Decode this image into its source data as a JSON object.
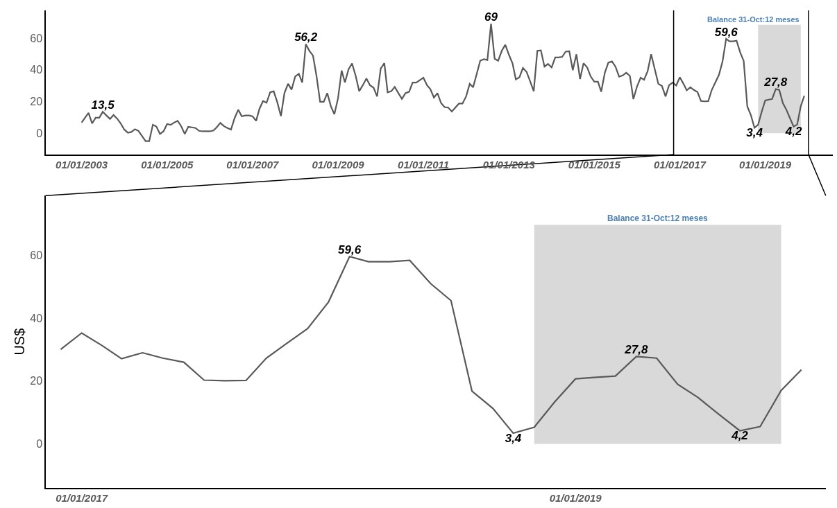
{
  "chart_data": [
    {
      "type": "line",
      "x": [
        "2003-01",
        "2003-03",
        "2003-04",
        "2003-05",
        "2003-06",
        "2003-07",
        "2003-08",
        "2003-09",
        "2003-10",
        "2003-11",
        "2003-12",
        "2004-01",
        "2004-02",
        "2004-03",
        "2004-04",
        "2004-05",
        "2004-06",
        "2004-07",
        "2004-08",
        "2004-09",
        "2004-10",
        "2004-11",
        "2004-12",
        "2005-01",
        "2005-02",
        "2005-03",
        "2005-04",
        "2005-05",
        "2005-06",
        "2005-07",
        "2005-08",
        "2005-09",
        "2005-10",
        "2005-11",
        "2005-12",
        "2006-01",
        "2006-02",
        "2006-03",
        "2006-04",
        "2006-05",
        "2006-06",
        "2006-07",
        "2006-08",
        "2006-09",
        "2006-10",
        "2006-11",
        "2006-12",
        "2007-01",
        "2007-02",
        "2007-03",
        "2007-04",
        "2007-05",
        "2007-06",
        "2007-07",
        "2007-08",
        "2007-09",
        "2007-10",
        "2007-11",
        "2007-12",
        "2008-01",
        "2008-02",
        "2008-03",
        "2008-04",
        "2008-05",
        "2008-06",
        "2008-07",
        "2008-08",
        "2008-09",
        "2008-10",
        "2008-11",
        "2008-12",
        "2009-01",
        "2009-02",
        "2009-03",
        "2009-04",
        "2009-05",
        "2009-06",
        "2009-07",
        "2009-08",
        "2009-09",
        "2009-10",
        "2009-11",
        "2009-12",
        "2010-01",
        "2010-02",
        "2010-03",
        "2010-04",
        "2010-05",
        "2010-06",
        "2010-07",
        "2010-08",
        "2010-09",
        "2010-10",
        "2010-11",
        "2011-01",
        "2011-02",
        "2011-03",
        "2011-04",
        "2011-05",
        "2011-06",
        "2011-07",
        "2011-08",
        "2011-09",
        "2011-10",
        "2011-11",
        "2011-12",
        "2012-01",
        "2012-02",
        "2012-03",
        "2012-04",
        "2012-05",
        "2012-06",
        "2012-07",
        "2012-08",
        "2012-09",
        "2012-10",
        "2012-11",
        "2012-12",
        "2013-01",
        "2013-02",
        "2013-03",
        "2013-04",
        "2013-05",
        "2013-06",
        "2013-07",
        "2013-08",
        "2013-09",
        "2013-10",
        "2013-11",
        "2013-12",
        "2014-01",
        "2014-02",
        "2014-03",
        "2014-04",
        "2014-05",
        "2014-06",
        "2014-07",
        "2014-08",
        "2014-09",
        "2014-10",
        "2014-11",
        "2014-12",
        "2015-01",
        "2015-02",
        "2015-03",
        "2015-04",
        "2015-05",
        "2015-06",
        "2015-07",
        "2015-08",
        "2015-09",
        "2015-10",
        "2015-11",
        "2015-12",
        "2016-01",
        "2016-02",
        "2016-03",
        "2016-04",
        "2016-05",
        "2016-06",
        "2016-07",
        "2016-08",
        "2016-09",
        "2016-10",
        "2016-11",
        "2016-12",
        "2017-01",
        "2017-02",
        "2017-03",
        "2017-04",
        "2017-05",
        "2017-06",
        "2017-07",
        "2017-08",
        "2017-09",
        "2017-10",
        "2017-11",
        "2017-12",
        "2018-01",
        "2018-02",
        "2018-03",
        "2018-04",
        "2018-05",
        "2018-06",
        "2018-07",
        "2018-08",
        "2018-09",
        "2018-10",
        "2018-11",
        "2018-12",
        "2019-01",
        "2019-02",
        "2019-03",
        "2019-04",
        "2019-05",
        "2019-06",
        "2019-07",
        "2019-08",
        "2019-09",
        "2019-10",
        "2019-11",
        "2019-12"
      ],
      "series": [
        {
          "color": "#595959",
          "values": [
            6.7,
            12.8,
            6.2,
            9.8,
            9.8,
            13.5,
            11.2,
            9.0,
            11.5,
            9.2,
            6.2,
            2.3,
            0.3,
            0.8,
            2.5,
            1.5,
            -1.8,
            -5.0,
            -5.0,
            5.3,
            4.2,
            -0.5,
            1.2,
            5.8,
            5.3,
            6.7,
            7.8,
            4.5,
            -0.5,
            4.0,
            3.7,
            3.3,
            1.5,
            1.2,
            1.2,
            1.2,
            1.7,
            3.7,
            6.5,
            4.5,
            3.3,
            2.3,
            9.5,
            14.8,
            10.7,
            11.2,
            11.2,
            10.7,
            7.8,
            15.3,
            20.3,
            19.2,
            25.8,
            26.5,
            19.5,
            10.8,
            25.3,
            31.2,
            27.5,
            35.8,
            37.5,
            32.0,
            56.2,
            52.0,
            49.0,
            36.2,
            19.8,
            19.8,
            25.3,
            17.0,
            12.0,
            22.0,
            39.5,
            32.0,
            40.3,
            44.0,
            36.2,
            26.5,
            30.3,
            34.5,
            30.3,
            28.7,
            23.2,
            40.8,
            44.2,
            25.8,
            26.5,
            29.2,
            25.3,
            21.7,
            25.3,
            26.2,
            32.0,
            32.0,
            35.0,
            30.3,
            27.8,
            22.5,
            25.3,
            19.0,
            16.5,
            16.2,
            13.7,
            16.2,
            18.7,
            18.7,
            23.2,
            31.2,
            29.0,
            37.5,
            45.8,
            46.7,
            46.2,
            69,
            47.0,
            45.7,
            52.0,
            55.8,
            49.5,
            44.0,
            34.0,
            35.3,
            41.2,
            38.7,
            32.8,
            26.5,
            52.0,
            52.3,
            42.0,
            43.7,
            41.5,
            47.8,
            47.8,
            48.2,
            51.5,
            51.7,
            39.8,
            49.8,
            34.2,
            44.2,
            41.5,
            35.8,
            32.5,
            32.5,
            26.2,
            38.2,
            44.5,
            45.3,
            42.0,
            35.7,
            36.5,
            38.2,
            36.2,
            21.5,
            29.5,
            35.0,
            33.7,
            39.2,
            49.8,
            40.3,
            31.2,
            29.8,
            23.2,
            30.3,
            32.0,
            30.1,
            35.3,
            31.2,
            27.1,
            29.0,
            27.3,
            26.0,
            20.3,
            20.1,
            20.2,
            27.3,
            32.1,
            36.7,
            45.2,
            59.6,
            58.0,
            58.0,
            58.4,
            51.0,
            45.6,
            16.8,
            11.3,
            3.4,
            5.3,
            13.3,
            20.7,
            21.2,
            21.6,
            27.8,
            27.3,
            19.0,
            14.8,
            9.4,
            4.2,
            5.5,
            17.0,
            23.6
          ],
          "value_labels": [
            null,
            null,
            null,
            null,
            null,
            "13,5",
            null,
            null,
            null,
            null,
            null,
            null,
            null,
            null,
            null,
            null,
            null,
            null,
            null,
            null,
            null,
            null,
            null,
            null,
            null,
            null,
            null,
            null,
            null,
            null,
            null,
            null,
            null,
            null,
            null,
            null,
            null,
            null,
            null,
            null,
            null,
            null,
            null,
            null,
            null,
            null,
            null,
            null,
            null,
            null,
            null,
            null,
            null,
            null,
            null,
            null,
            null,
            null,
            null,
            null,
            null,
            null,
            "56,2",
            null,
            null,
            null,
            null,
            null,
            null,
            null,
            null,
            null,
            null,
            null,
            null,
            null,
            null,
            null,
            null,
            null,
            null,
            null,
            null,
            null,
            null,
            null,
            null,
            null,
            null,
            null,
            null,
            null,
            null,
            null,
            null,
            null,
            null,
            null,
            null,
            null,
            null,
            null,
            null,
            null,
            null,
            null,
            null,
            null,
            null,
            null,
            null,
            null,
            null,
            "69",
            null,
            null,
            null,
            null,
            null,
            null,
            null,
            null,
            null,
            null,
            null,
            null,
            null,
            null,
            null,
            null,
            null,
            null,
            null,
            null,
            null,
            null,
            null,
            null,
            null,
            null,
            null,
            null,
            null,
            null,
            null,
            null,
            null,
            null,
            null,
            null,
            null,
            null,
            null,
            null,
            null,
            null,
            null,
            null,
            null,
            null,
            null,
            null,
            null,
            null,
            null,
            null,
            null,
            null,
            null,
            null,
            null,
            null,
            null,
            null,
            null,
            null,
            null,
            null,
            null,
            "59,6",
            null,
            null,
            null,
            null,
            null,
            null,
            null,
            "3,4",
            null,
            null,
            null,
            null,
            null,
            "27,8",
            null,
            null,
            null,
            null,
            "4,2",
            null,
            null,
            null
          ]
        }
      ],
      "xlim": [
        "2002-03-01",
        "2020-08-01"
      ],
      "ylim": [
        -13.5,
        77.5
      ],
      "xticks": [
        {
          "value": "2003-01-01",
          "label": "01/01/2003"
        },
        {
          "value": "2005-01-01",
          "label": "01/01/2005"
        },
        {
          "value": "2007-01-01",
          "label": "01/01/2007"
        },
        {
          "value": "2009-01-01",
          "label": "01/01/2009"
        },
        {
          "value": "2011-01-01",
          "label": "01/01/2011"
        },
        {
          "value": "2013-01-01",
          "label": "01/01/2013"
        },
        {
          "value": "2015-01-01",
          "label": "01/01/2015"
        },
        {
          "value": "2017-01-01",
          "label": "01/01/2017"
        },
        {
          "value": "2019-01-01",
          "label": "01/01/2019"
        }
      ],
      "yticks": [
        0,
        20,
        40,
        60
      ],
      "bands": [
        {
          "axis": "x",
          "from": "2018-11-01",
          "to": "2019-11-01",
          "label": "Balance 31-Oct:12 meses",
          "color": "#d9d9d9"
        }
      ],
      "ref_lines": [
        {
          "axis": "x",
          "value": "2016-11-09",
          "color": "#000000"
        },
        {
          "axis": "x",
          "value": "2020-01-06",
          "color": "#000000"
        }
      ],
      "grid": false
    },
    {
      "type": "line",
      "ylabel": "US$",
      "x": [
        "2016-12",
        "2017-01",
        "2017-02",
        "2017-03",
        "2017-04",
        "2017-05",
        "2017-06",
        "2017-07",
        "2017-08",
        "2017-09",
        "2017-10",
        "2017-11",
        "2017-12",
        "2018-01",
        "2018-02",
        "2018-03",
        "2018-04",
        "2018-05",
        "2018-06",
        "2018-07",
        "2018-08",
        "2018-09",
        "2018-10",
        "2018-11",
        "2018-12",
        "2019-01",
        "2019-02",
        "2019-03",
        "2019-04",
        "2019-05",
        "2019-06",
        "2019-07",
        "2019-08",
        "2019-09",
        "2019-10",
        "2019-11",
        "2019-12"
      ],
      "series": [
        {
          "color": "#595959",
          "values": [
            30.1,
            35.3,
            31.2,
            27.1,
            29.0,
            27.3,
            26.0,
            20.3,
            20.1,
            20.2,
            27.3,
            32.1,
            36.7,
            45.2,
            59.6,
            58.0,
            58.0,
            58.4,
            51.0,
            45.6,
            16.8,
            11.3,
            3.4,
            5.3,
            13.3,
            20.7,
            21.2,
            21.6,
            27.8,
            27.3,
            19.0,
            14.8,
            9.4,
            4.2,
            5.5,
            17.0,
            23.6
          ],
          "value_labels": [
            null,
            null,
            null,
            null,
            null,
            null,
            null,
            null,
            null,
            null,
            null,
            null,
            null,
            null,
            "59,6",
            null,
            null,
            null,
            null,
            null,
            null,
            null,
            "3,4",
            null,
            null,
            null,
            null,
            null,
            "27,8",
            null,
            null,
            null,
            null,
            "4,2",
            null,
            null,
            null
          ]
        }
      ],
      "xlim": [
        "2016-11-09",
        "2020-01-06"
      ],
      "ylim": [
        -14,
        79
      ],
      "xticks": [
        {
          "value": "2017-01-01",
          "label": "01/01/2017"
        },
        {
          "value": "2019-01-01",
          "label": "01/01/2019"
        }
      ],
      "yticks": [
        0,
        20,
        40,
        60
      ],
      "bands": [
        {
          "axis": "x",
          "from": "2018-11-01",
          "to": "2019-11-01",
          "label": "Balance 31-Oct:12 meses",
          "color": "#d9d9d9"
        }
      ],
      "grid": false
    }
  ]
}
